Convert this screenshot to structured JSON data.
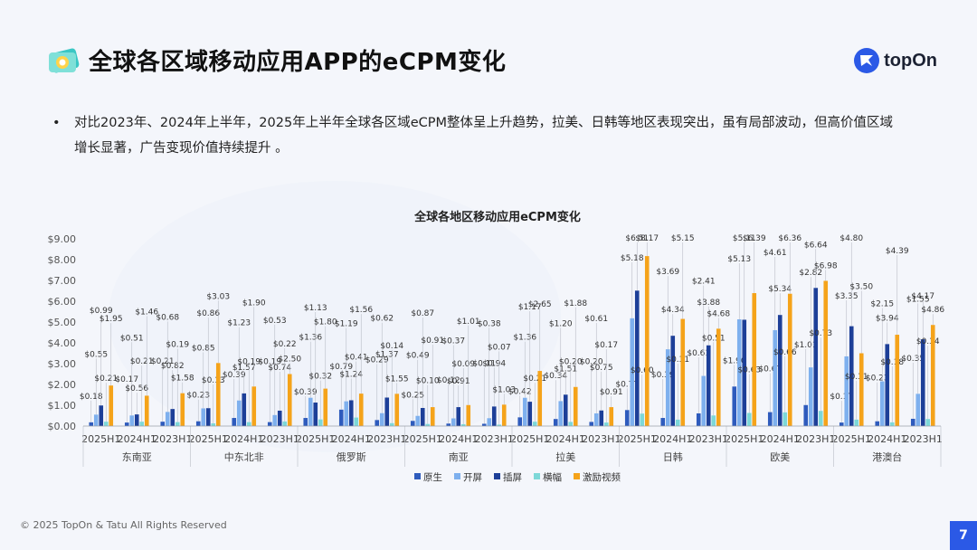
{
  "title": "全球各区域移动应用APP的eCPM变化",
  "brand": {
    "name": "topOn"
  },
  "bullet": {
    "marker": "•",
    "text": "对比2023年、2024年上半年，2025年上半年全球各区域eCPM整体呈上升趋势，拉美、日韩等地区表现突出，虽有局部波动，但高价值区域增长显著，广告变现价值持续提升 。"
  },
  "footer": {
    "copyright": "© 2025 TopOn & Tatu All Rights Reserved"
  },
  "page_number": "7",
  "colors": {
    "原生": "#2e5bbd",
    "开屏": "#7eb0ee",
    "插屏": "#1d3f98",
    "横幅": "#7dd8d8",
    "激励视频": "#f5a31a"
  },
  "chart_data": {
    "type": "bar",
    "title": "全球各地区移动应用eCPM变化",
    "ylim": [
      0,
      9
    ],
    "yticks": [
      "$0.00",
      "$1.00",
      "$2.00",
      "$3.00",
      "$4.00",
      "$5.00",
      "$6.00",
      "$7.00",
      "$8.00",
      "$9.00"
    ],
    "grid": false,
    "legend_position": "bottom",
    "series_names": [
      "原生",
      "开屏",
      "插屏",
      "横幅",
      "激励视频"
    ],
    "regions": [
      {
        "name": "东南亚",
        "periods": [
          {
            "label": "2025H1",
            "values": [
              0.18,
              0.55,
              0.99,
              0.21,
              1.95
            ]
          },
          {
            "label": "2024H1",
            "values": [
              0.17,
              0.51,
              0.56,
              0.21,
              1.46
            ]
          },
          {
            "label": "2023H1",
            "values": [
              0.21,
              0.68,
              0.82,
              0.19,
              1.58
            ]
          }
        ]
      },
      {
        "name": "中东北非",
        "periods": [
          {
            "label": "2025H1",
            "values": [
              0.23,
              0.85,
              0.86,
              0.13,
              3.03
            ]
          },
          {
            "label": "2024H1",
            "values": [
              0.39,
              1.23,
              1.57,
              0.19,
              1.9
            ]
          },
          {
            "label": "2023H1",
            "values": [
              0.19,
              0.53,
              0.74,
              0.22,
              2.5
            ]
          }
        ]
      },
      {
        "name": "俄罗斯",
        "periods": [
          {
            "label": "2025H1",
            "values": [
              0.39,
              1.36,
              1.13,
              0.32,
              1.8
            ]
          },
          {
            "label": "2024H1",
            "values": [
              0.79,
              1.19,
              1.24,
              0.41,
              1.56
            ]
          },
          {
            "label": "2023H1",
            "values": [
              0.29,
              0.62,
              1.37,
              0.14,
              1.55
            ]
          }
        ]
      },
      {
        "name": "南亚",
        "periods": [
          {
            "label": "2025H1",
            "values": [
              0.25,
              0.49,
              0.87,
              0.1,
              0.91
            ]
          },
          {
            "label": "2024H1",
            "values": [
              0.12,
              0.37,
              0.91,
              0.09,
              1.01
            ]
          },
          {
            "label": "2023H1",
            "values": [
              0.11,
              0.38,
              0.94,
              0.07,
              1.03
            ]
          }
        ]
      },
      {
        "name": "拉美",
        "periods": [
          {
            "label": "2025H1",
            "values": [
              0.42,
              1.36,
              1.17,
              0.21,
              2.65
            ]
          },
          {
            "label": "2024H1",
            "values": [
              0.34,
              1.2,
              1.51,
              0.2,
              1.88
            ]
          },
          {
            "label": "2023H1",
            "values": [
              0.2,
              0.61,
              0.75,
              0.17,
              0.91
            ]
          }
        ]
      },
      {
        "name": "日韩",
        "periods": [
          {
            "label": "2025H1",
            "values": [
              0.77,
              5.18,
              6.51,
              0.6,
              8.17
            ]
          },
          {
            "label": "2024H1",
            "values": [
              0.39,
              3.69,
              4.34,
              0.31,
              5.15
            ]
          },
          {
            "label": "2023H1",
            "values": [
              0.61,
              2.41,
              3.88,
              0.51,
              4.68
            ]
          }
        ]
      },
      {
        "name": "欧美",
        "periods": [
          {
            "label": "2025H1",
            "values": [
              1.9,
              5.13,
              5.11,
              0.63,
              6.39
            ]
          },
          {
            "label": "2024H1",
            "values": [
              0.67,
              4.61,
              5.34,
              0.66,
              6.36
            ]
          },
          {
            "label": "2023H1",
            "values": [
              1.01,
              2.82,
              6.64,
              0.73,
              6.98
            ]
          }
        ]
      },
      {
        "name": "港澳台",
        "periods": [
          {
            "label": "2025H1",
            "values": [
              0.17,
              3.35,
              4.8,
              0.31,
              3.5
            ]
          },
          {
            "label": "2024H1",
            "values": [
              0.23,
              2.15,
              3.94,
              0.18,
              4.39
            ]
          },
          {
            "label": "2023H1",
            "values": [
              0.35,
              1.55,
              4.17,
              0.34,
              4.86
            ]
          }
        ]
      }
    ]
  }
}
